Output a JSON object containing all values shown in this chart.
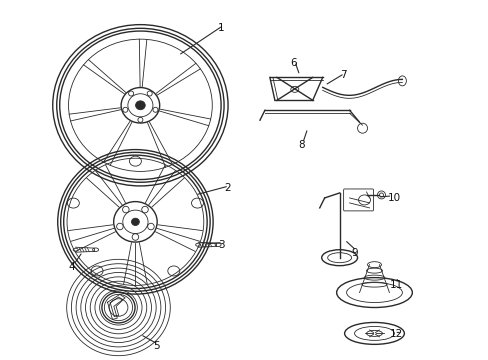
{
  "background_color": "#ffffff",
  "fig_width": 4.89,
  "fig_height": 3.6,
  "dpi": 100,
  "line_color": "#2a2a2a",
  "text_color": "#111111",
  "label_fontsize": 7.5
}
